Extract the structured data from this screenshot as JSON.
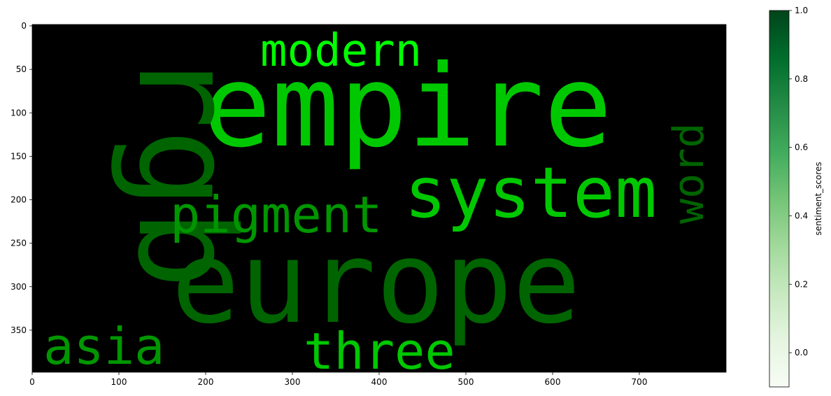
{
  "chart_data": [
    {
      "type": "wordcloud",
      "image_extent": {
        "x": [
          0,
          800
        ],
        "y": [
          0,
          400
        ]
      },
      "x_ticks": [
        0,
        100,
        200,
        300,
        400,
        500,
        600,
        700
      ],
      "y_ticks": [
        0,
        50,
        100,
        150,
        200,
        250,
        300,
        350
      ],
      "background": "#000000",
      "words": [
        {
          "text": "empire",
          "color": "#00c800",
          "x": 290,
          "y": 208,
          "size": 162,
          "rotate": 0
        },
        {
          "text": "europe",
          "color": "#006400",
          "x": 245,
          "y": 460,
          "size": 162,
          "rotate": 0
        },
        {
          "text": "system",
          "color": "#00c800",
          "x": 578,
          "y": 310,
          "size": 100,
          "rotate": 0
        },
        {
          "text": "rgb",
          "color": "#006400",
          "x": 200,
          "y": 70,
          "size": 190,
          "rotate": 90
        },
        {
          "text": "pigment",
          "color": "#009600",
          "x": 243,
          "y": 332,
          "size": 72,
          "rotate": 0
        },
        {
          "text": "modern",
          "color": "#00ff00",
          "x": 372,
          "y": 94,
          "size": 64,
          "rotate": 0
        },
        {
          "text": "three",
          "color": "#00c800",
          "x": 434,
          "y": 527,
          "size": 72,
          "rotate": 0
        },
        {
          "text": "asia",
          "color": "#009600",
          "x": 62,
          "y": 520,
          "size": 72,
          "rotate": 0
        },
        {
          "text": "word",
          "color": "#006400",
          "x": 1005,
          "y": 320,
          "size": 60,
          "rotate": -90
        }
      ]
    },
    {
      "type": "colorbar",
      "label": "sentiment_scores",
      "colormap": "Greens",
      "range": [
        -0.1,
        1.0
      ],
      "ticks": [
        "0.0",
        "0.2",
        "0.4",
        "0.6",
        "0.8",
        "1.0"
      ],
      "tick_values": [
        0.0,
        0.2,
        0.4,
        0.6,
        0.8,
        1.0
      ],
      "colors": [
        "#f7fcf5",
        "#e5f5e0",
        "#c7e9c0",
        "#a1d99b",
        "#74c476",
        "#41ab5d",
        "#238b45",
        "#006d2c",
        "#00441b"
      ]
    }
  ]
}
